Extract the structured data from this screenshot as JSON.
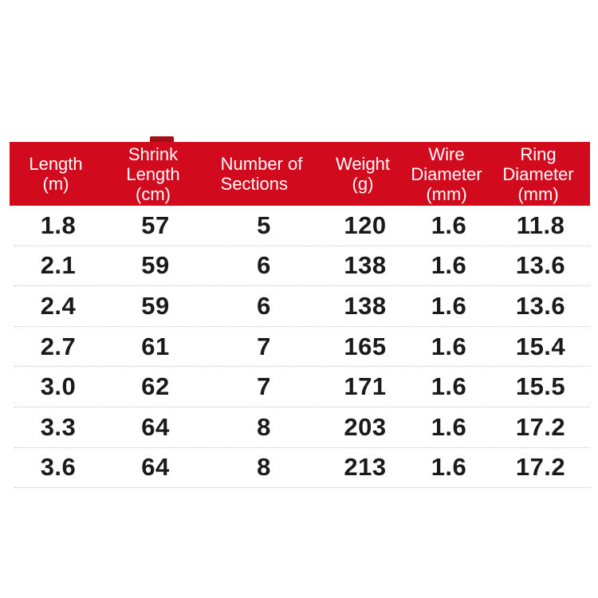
{
  "page": {
    "background_color": "#ffffff"
  },
  "table": {
    "header_bg": "#d20a1e",
    "header_text_color": "#ffffff",
    "accent_dark": "#a50d14",
    "body_text_color": "#1a1a1a",
    "divider_color": "#c6c6c6",
    "columns": [
      {
        "id": "length-m",
        "align": "center",
        "lines": [
          "Length",
          "(m)"
        ]
      },
      {
        "id": "shrink-length-cm",
        "align": "center",
        "lines": [
          "Shrink",
          "Length",
          "(cm)"
        ]
      },
      {
        "id": "number-of-sections",
        "align": "left",
        "lines": [
          "Number of",
          "Sections"
        ]
      },
      {
        "id": "weight-g",
        "align": "center",
        "lines": [
          "Weight",
          "(g)"
        ]
      },
      {
        "id": "wire-diameter-mm",
        "align": "center",
        "lines": [
          "Wire",
          "Diameter",
          "(mm)"
        ]
      },
      {
        "id": "ring-diameter-mm",
        "align": "center",
        "lines": [
          "Ring",
          "Diameter",
          "(mm)"
        ]
      }
    ],
    "rows": [
      [
        "1.8",
        "57",
        "5",
        "120",
        "1.6",
        "11.8"
      ],
      [
        "2.1",
        "59",
        "6",
        "138",
        "1.6",
        "13.6"
      ],
      [
        "2.4",
        "59",
        "6",
        "138",
        "1.6",
        "13.6"
      ],
      [
        "2.7",
        "61",
        "7",
        "165",
        "1.6",
        "15.4"
      ],
      [
        "3.0",
        "62",
        "7",
        "171",
        "1.6",
        "15.5"
      ],
      [
        "3.3",
        "64",
        "8",
        "203",
        "1.6",
        "17.2"
      ],
      [
        "3.6",
        "64",
        "8",
        "213",
        "1.6",
        "17.2"
      ]
    ]
  }
}
